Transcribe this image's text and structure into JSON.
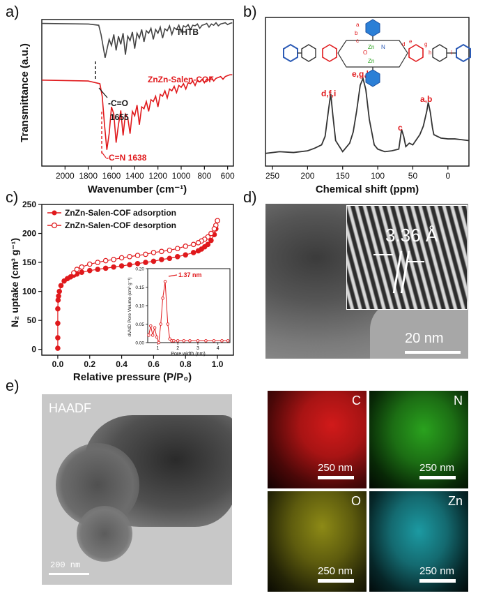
{
  "figure": {
    "panel_labels": [
      "a)",
      "b)",
      "c)",
      "d)",
      "e)"
    ],
    "colors": {
      "thtb": "#444444",
      "cof": "#e0191c",
      "annotation": "#e0191c",
      "carbon": "#d11a1a",
      "nitrogen": "#2aa21e",
      "oxygen": "#b6b21f",
      "zinc": "#1fb6bf"
    }
  },
  "chart_data": [
    {
      "type": "line",
      "panel": "a",
      "xlabel": "Wavenumber (cm⁻¹)",
      "ylabel": "Transmittance (a.u.)",
      "xlim": [
        2200,
        550
      ],
      "x_ticks": [
        "2000",
        "1800",
        "1600",
        "1400",
        "1200",
        "1000",
        "800",
        "600"
      ],
      "series": [
        {
          "name": "THTB",
          "x": [
            2200,
            1800,
            1710,
            1690,
            1655,
            1620,
            1600,
            1580,
            1560,
            1540,
            1520,
            1500,
            1480,
            1460,
            1440,
            1420,
            1400,
            1380,
            1360,
            1340,
            1320,
            1300,
            1280,
            1260,
            1240,
            1220,
            1200,
            1180,
            1160,
            1140,
            1120,
            1100,
            1080,
            1060,
            1040,
            1020,
            1000,
            980,
            960,
            940,
            920,
            900,
            880,
            860,
            840,
            820,
            800,
            780,
            760,
            740,
            720,
            700,
            680,
            660,
            640,
            620,
            600,
            580,
            560
          ],
          "y": [
            0.96,
            0.95,
            0.93,
            0.78,
            0.4,
            0.7,
            0.6,
            0.78,
            0.52,
            0.75,
            0.62,
            0.8,
            0.45,
            0.75,
            0.68,
            0.82,
            0.55,
            0.8,
            0.72,
            0.86,
            0.66,
            0.84,
            0.8,
            0.88,
            0.7,
            0.86,
            0.8,
            0.9,
            0.72,
            0.87,
            0.84,
            0.92,
            0.78,
            0.89,
            0.86,
            0.93,
            0.82,
            0.92,
            0.9,
            0.94,
            0.86,
            0.93,
            0.92,
            0.95,
            0.88,
            0.93,
            0.94,
            0.96,
            0.9,
            0.95,
            0.93,
            0.97,
            0.92,
            0.95,
            0.96,
            0.97,
            0.94,
            0.96,
            0.97
          ]
        },
        {
          "name": "ZnZn-Salen-COF",
          "x": [
            2200,
            1800,
            1700,
            1680,
            1660,
            1640,
            1620,
            1600,
            1580,
            1560,
            1540,
            1520,
            1500,
            1480,
            1460,
            1440,
            1420,
            1400,
            1380,
            1360,
            1340,
            1320,
            1300,
            1280,
            1260,
            1240,
            1220,
            1200,
            1180,
            1160,
            1140,
            1120,
            1100,
            1080,
            1060,
            1040,
            1020,
            1000,
            980,
            960,
            940,
            920,
            900,
            880,
            860,
            840,
            820,
            800,
            780,
            760,
            740,
            720,
            700,
            680,
            660,
            640,
            620,
            600,
            580,
            560
          ],
          "y": [
            0.9,
            0.89,
            0.86,
            0.72,
            0.4,
            0.12,
            0.3,
            0.6,
            0.52,
            0.2,
            0.4,
            0.56,
            0.28,
            0.52,
            0.48,
            0.3,
            0.55,
            0.5,
            0.62,
            0.4,
            0.6,
            0.58,
            0.66,
            0.55,
            0.68,
            0.66,
            0.72,
            0.6,
            0.74,
            0.72,
            0.78,
            0.7,
            0.8,
            0.78,
            0.83,
            0.76,
            0.84,
            0.82,
            0.86,
            0.8,
            0.87,
            0.86,
            0.89,
            0.84,
            0.9,
            0.88,
            0.91,
            0.87,
            0.91,
            0.9,
            0.93,
            0.89,
            0.92,
            0.93,
            0.94,
            0.91,
            0.94,
            0.95,
            0.96,
            0.96
          ]
        }
      ],
      "annotations": [
        "-C=O",
        "1655",
        "-C=N 1638"
      ]
    },
    {
      "type": "line",
      "panel": "b",
      "xlabel": "Chemical shift (ppm)",
      "xlim": [
        260,
        -30
      ],
      "x_ticks": [
        "250",
        "200",
        "150",
        "100",
        "50",
        "0"
      ],
      "series": [
        {
          "name": "",
          "x": [
            260,
            240,
            220,
            200,
            190,
            180,
            175,
            170,
            167,
            164,
            160,
            150,
            140,
            135,
            130,
            125,
            121,
            117,
            112,
            105,
            100,
            90,
            80,
            70,
            66,
            63,
            60,
            55,
            50,
            45,
            40,
            35,
            30,
            28,
            25,
            22,
            20,
            15,
            10,
            0,
            -10,
            -20,
            -30
          ],
          "y": [
            0.1,
            0.12,
            0.11,
            0.13,
            0.16,
            0.2,
            0.3,
            0.62,
            0.8,
            0.55,
            0.25,
            0.12,
            0.22,
            0.35,
            0.6,
            0.9,
            0.98,
            0.85,
            0.5,
            0.2,
            0.15,
            0.12,
            0.13,
            0.15,
            0.38,
            0.3,
            0.18,
            0.22,
            0.2,
            0.26,
            0.32,
            0.42,
            0.6,
            0.7,
            0.58,
            0.4,
            0.32,
            0.3,
            0.28,
            0.27,
            0.27,
            0.26,
            0.25
          ]
        }
      ],
      "annotations": [
        "a,b",
        "c",
        "d,f,i",
        "e,g,h"
      ],
      "structure_labels": [
        "a",
        "b",
        "c",
        "d",
        "e",
        "g",
        "h",
        "i",
        "O",
        "N",
        "Zn"
      ]
    },
    {
      "type": "scatter",
      "panel": "c",
      "xlabel": "Relative pressure (P/P₀)",
      "ylabel": "N₂ uptake (cm³ g⁻¹)",
      "xlim": [
        -0.1,
        1.1
      ],
      "ylim": [
        -10,
        250
      ],
      "x_ticks": [
        "0.0",
        "0.2",
        "0.4",
        "0.6",
        "0.8",
        "1.0"
      ],
      "y_ticks": [
        "0",
        "50",
        "100",
        "150",
        "200",
        "250"
      ],
      "legend_position": "top-left",
      "series": [
        {
          "name": "ZnZn-Salen-COF adsorption",
          "x": [
            0.0,
            0.0,
            0.0,
            0.0,
            0.002,
            0.005,
            0.01,
            0.02,
            0.04,
            0.06,
            0.08,
            0.1,
            0.12,
            0.15,
            0.2,
            0.25,
            0.3,
            0.35,
            0.4,
            0.45,
            0.5,
            0.55,
            0.6,
            0.65,
            0.7,
            0.75,
            0.8,
            0.85,
            0.88,
            0.9,
            0.92,
            0.94,
            0.96,
            0.98,
            0.99,
            1.0
          ],
          "y": [
            2,
            20,
            45,
            70,
            85,
            92,
            100,
            110,
            118,
            122,
            125,
            128,
            130,
            133,
            136,
            138,
            140,
            142,
            144,
            146,
            148,
            150,
            152,
            155,
            157,
            160,
            163,
            167,
            170,
            173,
            177,
            181,
            188,
            198,
            208,
            222
          ]
        },
        {
          "name": "ZnZn-Salen-COF desorption",
          "x": [
            1.0,
            0.99,
            0.98,
            0.96,
            0.94,
            0.92,
            0.9,
            0.88,
            0.85,
            0.8,
            0.75,
            0.7,
            0.65,
            0.6,
            0.55,
            0.5,
            0.45,
            0.4,
            0.35,
            0.3,
            0.25,
            0.2,
            0.15,
            0.12,
            0.1
          ],
          "y": [
            222,
            214,
            208,
            200,
            194,
            190,
            187,
            184,
            181,
            178,
            174,
            171,
            169,
            167,
            164,
            162,
            160,
            158,
            155,
            153,
            150,
            147,
            142,
            138,
            132
          ]
        }
      ],
      "inset": {
        "type": "line",
        "xlabel": "Pore width (nm)",
        "ylabel": "dV/dD Pore Volume (cm³ g⁻¹)",
        "xlim": [
          0.5,
          4.6
        ],
        "ylim": [
          0,
          0.2
        ],
        "x_ticks": [
          "1",
          "2",
          "3",
          "4"
        ],
        "y_ticks": [
          "0.00",
          "0.05",
          "0.10",
          "0.15",
          "0.20"
        ],
        "annotation": "1.37 nm",
        "x": [
          0.55,
          0.65,
          0.75,
          0.85,
          0.95,
          1.05,
          1.15,
          1.25,
          1.37,
          1.5,
          1.6,
          1.7,
          1.8,
          2.0,
          2.3,
          2.6,
          3.0,
          3.4,
          3.8,
          4.2,
          4.5
        ],
        "y": [
          0.02,
          0.045,
          0.02,
          0.04,
          0.015,
          0.0,
          0.05,
          0.12,
          0.165,
          0.05,
          0.01,
          0.005,
          0.005,
          0.005,
          0.005,
          0.005,
          0.005,
          0.005,
          0.005,
          0.005,
          0.005
        ]
      }
    }
  ],
  "panel_d": {
    "lattice_spacing": "3.36 Å",
    "scale_bar": "20 nm"
  },
  "panel_e": {
    "haadf_label": "HAADF",
    "haadf_scale": "200 nm",
    "maps": [
      {
        "element": "C",
        "scale": "250 nm"
      },
      {
        "element": "N",
        "scale": "250 nm"
      },
      {
        "element": "O",
        "scale": "250 nm"
      },
      {
        "element": "Zn",
        "scale": "250 nm"
      }
    ]
  }
}
